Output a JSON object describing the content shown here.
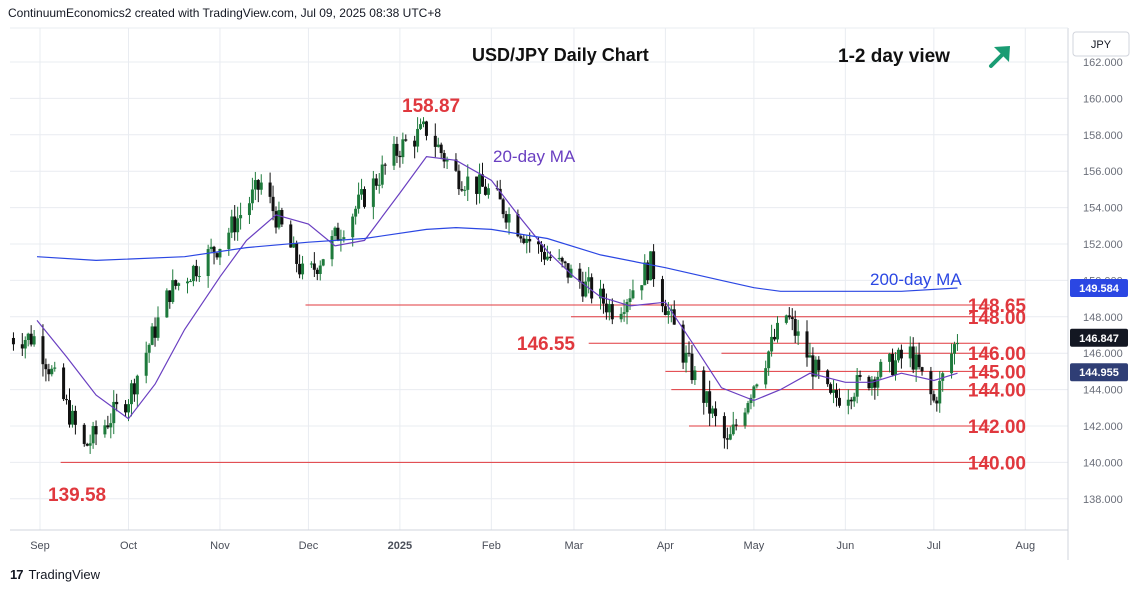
{
  "header": {
    "attribution": "ContinuumEconomics2 created with TradingView.com, Jul 09, 2025 08:38 UTC+8"
  },
  "footer": {
    "brand": "TradingView",
    "logo_text": "17"
  },
  "colors": {
    "up": "#1e7a3c",
    "down": "#111111",
    "ma20": "#6a3fc1",
    "ma200": "#2b47e3",
    "level": "#e0383e",
    "arrow": "#1a9c73",
    "grid": "#e9ecf1"
  },
  "chart_data": {
    "type": "line",
    "title": "USD/JPY Daily Chart",
    "subtitle": "1-2 day view",
    "view_arrow": "up-right-arrow-icon",
    "currency": "JPY",
    "ylim": [
      136.9,
      163.3
    ],
    "y_ticks": [
      "138.000",
      "140.000",
      "142.000",
      "144.000",
      "146.000",
      "148.000",
      "150.000",
      "152.000",
      "154.000",
      "156.000",
      "158.000",
      "160.000",
      "162.000"
    ],
    "x_ticks": [
      "Sep",
      "Oct",
      "Nov",
      "Dec",
      "2025",
      "Feb",
      "Mar",
      "Apr",
      "May",
      "Jun",
      "Jul",
      "Aug"
    ],
    "grid": true,
    "price_labels": {
      "last": "146.847",
      "ma20": "144.955",
      "ma200": "149.584"
    },
    "series": [
      {
        "name": "20-day MA",
        "x": [
          "2024-08-31",
          "2024-09-10",
          "2024-09-20",
          "2024-10-01",
          "2024-10-10",
          "2024-10-20",
          "2024-11-01",
          "2024-11-10",
          "2024-11-20",
          "2024-12-01",
          "2024-12-10",
          "2024-12-20",
          "2025-01-01",
          "2025-01-10",
          "2025-01-20",
          "2025-02-01",
          "2025-02-10",
          "2025-02-20",
          "2025-03-01",
          "2025-03-10",
          "2025-03-20",
          "2025-04-01",
          "2025-04-10",
          "2025-04-20",
          "2025-05-01",
          "2025-05-10",
          "2025-05-20",
          "2025-06-01",
          "2025-06-10",
          "2025-06-20",
          "2025-07-01",
          "2025-07-09"
        ],
        "y": [
          147.8,
          145.8,
          143.7,
          142.4,
          144.3,
          147.3,
          150.2,
          152.2,
          153.6,
          153.1,
          151.9,
          152.2,
          154.8,
          156.8,
          156.6,
          155.5,
          153.6,
          151.6,
          150.2,
          149.1,
          148.6,
          148.8,
          146.6,
          144.1,
          143.4,
          144.0,
          144.9,
          144.4,
          144.4,
          144.9,
          144.5,
          144.9
        ]
      },
      {
        "name": "200-day MA",
        "x": [
          "2024-08-31",
          "2024-09-20",
          "2024-10-20",
          "2024-11-10",
          "2024-12-01",
          "2024-12-20",
          "2025-01-10",
          "2025-01-20",
          "2025-02-01",
          "2025-02-20",
          "2025-03-10",
          "2025-04-01",
          "2025-04-20",
          "2025-05-01",
          "2025-05-10",
          "2025-06-01",
          "2025-06-20",
          "2025-07-09"
        ],
        "y": [
          151.3,
          151.1,
          151.3,
          151.8,
          152.1,
          152.3,
          152.8,
          152.9,
          152.8,
          152.3,
          151.4,
          150.7,
          150.0,
          149.6,
          149.4,
          149.4,
          149.4,
          149.58
        ]
      },
      {
        "name": "USD/JPY",
        "x": [
          "2024-09-01",
          "2024-09-16",
          "2024-10-01",
          "2024-10-15",
          "2024-11-01",
          "2024-11-15",
          "2024-11-30",
          "2024-12-15",
          "2025-01-01",
          "2025-01-10",
          "2025-01-20",
          "2025-02-01",
          "2025-02-15",
          "2025-03-01",
          "2025-03-15",
          "2025-03-27",
          "2025-04-07",
          "2025-04-22",
          "2025-05-01",
          "2025-05-12",
          "2025-05-27",
          "2025-06-10",
          "2025-06-23",
          "2025-07-01",
          "2025-07-09"
        ],
        "y": [
          146.4,
          140.8,
          143.6,
          149.4,
          152.0,
          155.3,
          150.0,
          153.5,
          157.3,
          158.3,
          155.8,
          154.8,
          152.0,
          150.2,
          148.3,
          150.9,
          146.0,
          140.9,
          144.4,
          148.1,
          143.4,
          144.7,
          146.0,
          143.3,
          146.85
        ]
      }
    ],
    "levels": [
      {
        "label": "148.65",
        "value": 148.65,
        "from": "2024-11-30"
      },
      {
        "label": "148.00",
        "value": 148.0,
        "from": "2025-02-28"
      },
      {
        "label": "146.55",
        "value": 146.55,
        "from": "2025-03-06"
      },
      {
        "label": "146.00",
        "value": 146.0,
        "from": "2025-04-20"
      },
      {
        "label": "145.00",
        "value": 145.0,
        "from": "2025-04-01"
      },
      {
        "label": "144.00",
        "value": 144.0,
        "from": "2025-04-03"
      },
      {
        "label": "142.00",
        "value": 142.0,
        "from": "2025-04-09"
      },
      {
        "label": "140.00",
        "value": 140.0,
        "from": "2024-09-08"
      }
    ],
    "annotations": [
      {
        "text": "158.87",
        "x": "2025-01-10",
        "y": 158.87
      },
      {
        "text": "139.58",
        "x": "2024-09-16",
        "y": 139.58
      },
      {
        "text": "20-day MA",
        "x": "2025-01-25",
        "y": 156.8
      },
      {
        "text": "200-day MA",
        "x": "2025-05-15",
        "y": 150.0
      }
    ]
  }
}
